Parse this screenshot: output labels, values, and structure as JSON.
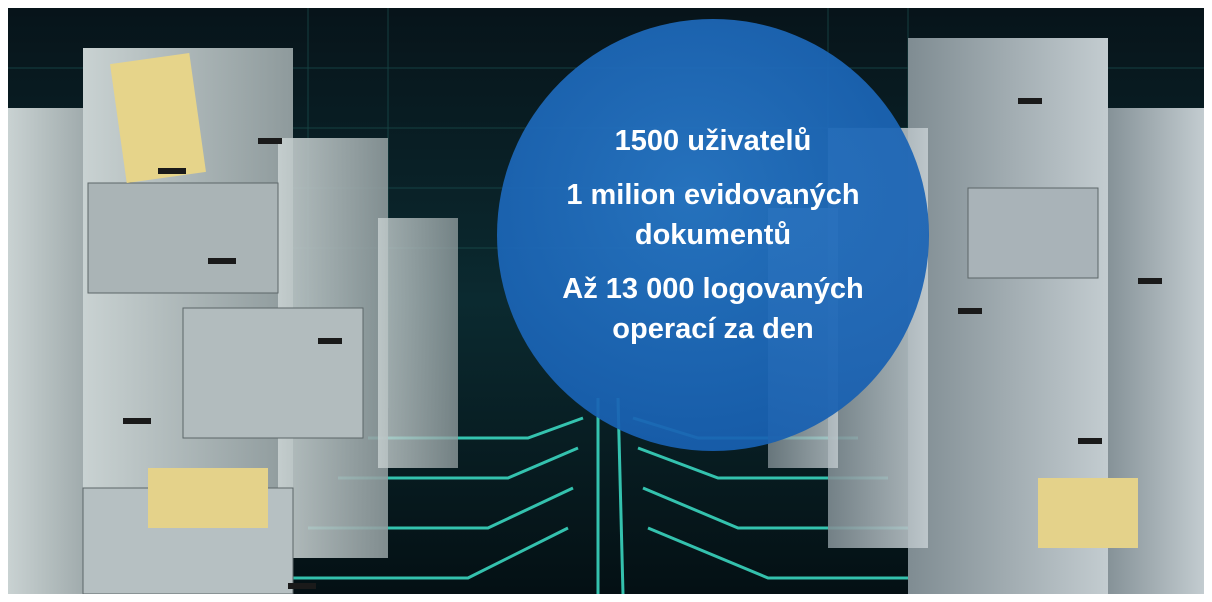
{
  "overlay": {
    "lines": [
      "1500 uživatelů",
      "1 milion evidovaných dokumentů",
      "Až 13 000 logovaných operací za den"
    ]
  }
}
